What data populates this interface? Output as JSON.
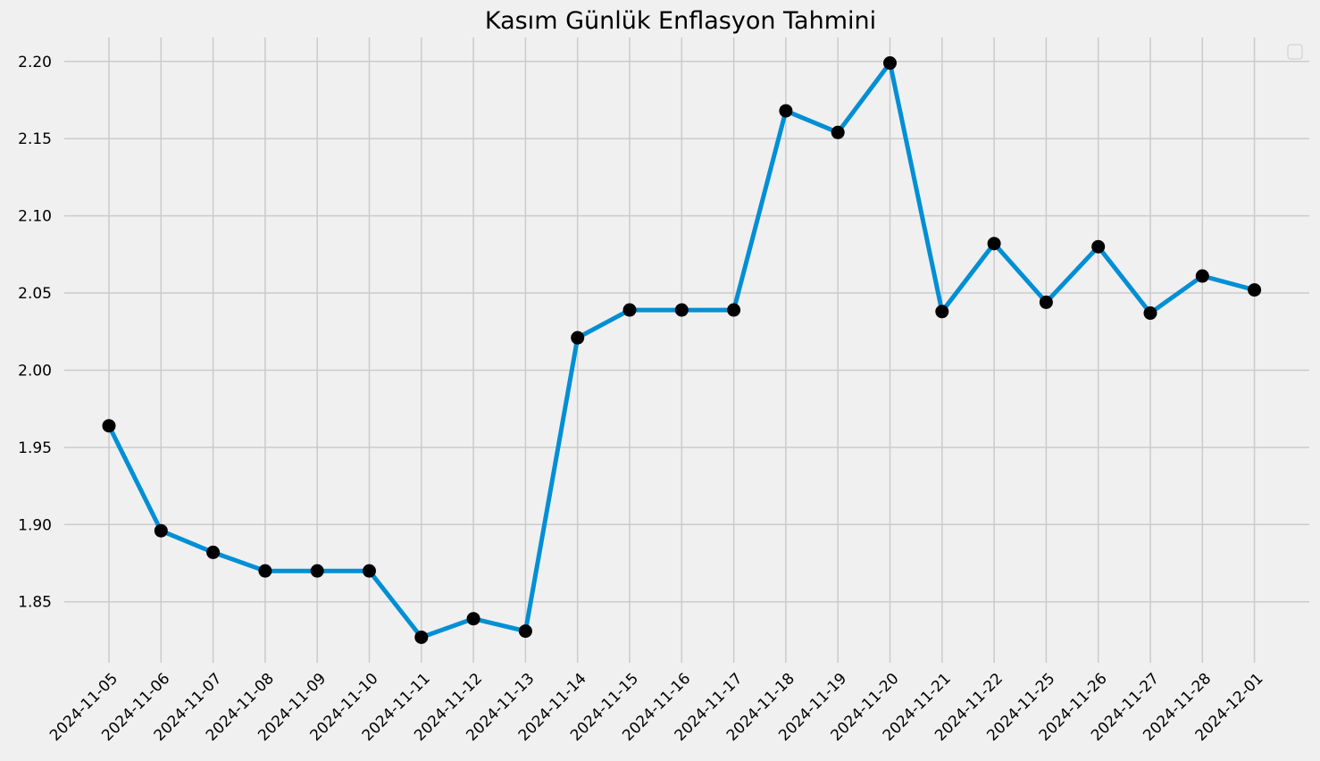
{
  "chart_data": {
    "type": "line",
    "title": "Kasım Günlük Enflasyon Tahmini",
    "xlabel": "",
    "ylabel": "",
    "x": [
      "2024-11-05",
      "2024-11-06",
      "2024-11-07",
      "2024-11-08",
      "2024-11-09",
      "2024-11-10",
      "2024-11-11",
      "2024-11-12",
      "2024-11-13",
      "2024-11-14",
      "2024-11-15",
      "2024-11-16",
      "2024-11-17",
      "2024-11-18",
      "2024-11-19",
      "2024-11-20",
      "2024-11-21",
      "2024-11-22",
      "2024-11-25",
      "2024-11-26",
      "2024-11-27",
      "2024-11-28",
      "2024-12-01"
    ],
    "series": [
      {
        "values": [
          1.964,
          1.896,
          1.882,
          1.87,
          1.87,
          1.87,
          1.827,
          1.839,
          1.831,
          2.021,
          2.039,
          2.039,
          2.039,
          2.168,
          2.154,
          2.199,
          2.038,
          2.082,
          2.044,
          2.08,
          2.037,
          2.061,
          2.052
        ]
      }
    ],
    "yticks": [
      "1.85",
      "1.90",
      "1.95",
      "2.00",
      "2.05",
      "2.10",
      "2.15",
      "2.20"
    ],
    "ylim": [
      1.8105,
      2.2155
    ],
    "grid": true,
    "legend": "top-right",
    "colors": {
      "line": "#008fd5",
      "marker": "#000000",
      "background": "#f0f0f0",
      "grid": "#cbcbcb"
    }
  }
}
